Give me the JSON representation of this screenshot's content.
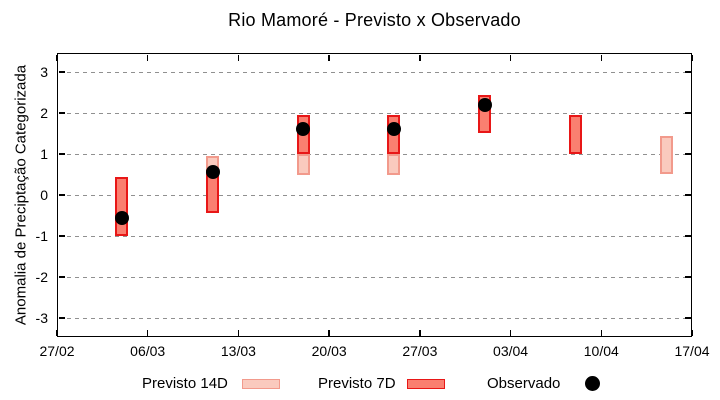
{
  "title": "Rio Mamoré - Previsto x Observado",
  "colors": {
    "p7_fill": "#fa7f70",
    "p7_border": "#e81717",
    "p14_fill": "#facabe",
    "p14_border": "#f29a8c",
    "observed": "#000000",
    "grid": "#909090",
    "axis": "#000000"
  },
  "legend": {
    "items": [
      {
        "label": "Previsto 14D"
      },
      {
        "label": "Previsto 7D"
      },
      {
        "label": "Observado"
      }
    ]
  },
  "chart_data": {
    "type": "range-bar+scatter",
    "title": "Rio Mamoré - Previsto x Observado",
    "xlabel": "",
    "ylabel": "Anomalia de Preciptação Categorizada",
    "ylim": [
      -3.46,
      3.46
    ],
    "yticks": [
      3,
      2,
      1,
      0,
      -1,
      -2,
      -3
    ],
    "grid": "horizontal-dashed",
    "legend_position": "bottom",
    "x_total_days": 49,
    "xticks": [
      {
        "label": "27/02",
        "day": 0
      },
      {
        "label": "06/03",
        "day": 7
      },
      {
        "label": "13/03",
        "day": 14
      },
      {
        "label": "20/03",
        "day": 21
      },
      {
        "label": "27/03",
        "day": 28
      },
      {
        "label": "03/04",
        "day": 35
      },
      {
        "label": "10/04",
        "day": 42
      },
      {
        "label": "17/04",
        "day": 49
      }
    ],
    "series": [
      {
        "name": "Previsto 14D",
        "type": "range",
        "fill": "#facabe",
        "border": "#f29a8c"
      },
      {
        "name": "Previsto 7D",
        "type": "range",
        "fill": "#fa7f70",
        "border": "#e81717"
      },
      {
        "name": "Observado",
        "type": "point",
        "color": "#000000"
      }
    ],
    "points": [
      {
        "date": "04/03",
        "day": 5,
        "previsto_14d": null,
        "previsto_7d": [
          -1.0,
          0.45
        ],
        "observado": -0.55
      },
      {
        "date": "11/03",
        "day": 12,
        "previsto_14d": [
          0.6,
          0.95
        ],
        "previsto_7d": [
          -0.45,
          0.6
        ],
        "observado": 0.55
      },
      {
        "date": "18/03",
        "day": 19,
        "previsto_14d": [
          0.5,
          1.0
        ],
        "previsto_7d": [
          1.0,
          1.95
        ],
        "observado": 1.6
      },
      {
        "date": "25/03",
        "day": 26,
        "previsto_14d": [
          0.5,
          1.0
        ],
        "previsto_7d": [
          1.0,
          1.95
        ],
        "observado": 1.6
      },
      {
        "date": "01/04",
        "day": 33,
        "previsto_14d": null,
        "previsto_7d": [
          1.5,
          2.45
        ],
        "observado": 2.2
      },
      {
        "date": "08/04",
        "day": 40,
        "previsto_14d": null,
        "previsto_7d": [
          1.0,
          1.95
        ],
        "observado": null
      },
      {
        "date": "15/04",
        "day": 47,
        "previsto_14d": [
          0.5,
          1.45
        ],
        "previsto_7d": null,
        "observado": null
      }
    ]
  }
}
